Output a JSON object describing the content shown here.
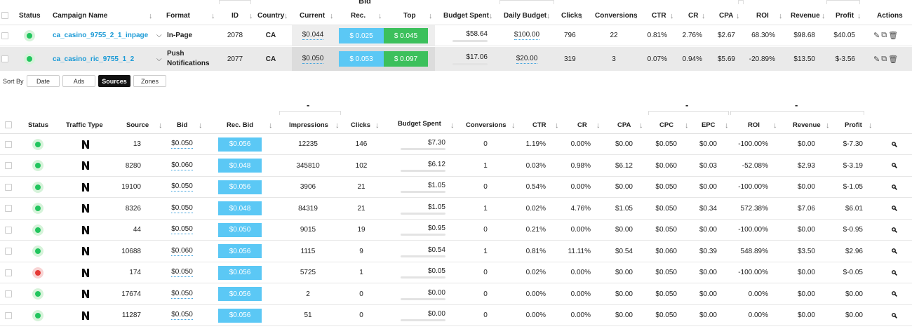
{
  "campaigns": {
    "bid_group_title": "Bid",
    "headers": {
      "status": "Status",
      "campaign_name": "Campaign Name",
      "format": "Format",
      "id": "ID",
      "country": "Country",
      "current": "Current",
      "rec": "Rec.",
      "top": "Top",
      "budget_spent": "Budget Spent",
      "daily_budget": "Daily Budget",
      "clicks": "Clicks",
      "conversions": "Conversions",
      "ctr": "CTR",
      "cr": "CR",
      "cpa": "CPA",
      "roi": "ROI",
      "revenue": "Revenue",
      "profit": "Profit",
      "actions": "Actions"
    },
    "sort_arrow": "↓",
    "rows": [
      {
        "status": "active",
        "name": "ca_casino_9755_2_1_inpage",
        "format": "In-Page",
        "id": "2078",
        "country": "CA",
        "current": "$0.044",
        "rec": "$ 0.025",
        "top": "$ 0.045",
        "budget_spent": "$58.64",
        "daily_budget": "$100.00",
        "clicks": "796",
        "conversions": "22",
        "ctr": "0.81%",
        "cr": "2.76%",
        "cpa": "$2.67",
        "roi": "68.30%",
        "revenue": "$98.68",
        "profit": "$40.05"
      },
      {
        "status": "active",
        "name": "ca_casino_ric_9755_1_2",
        "format_line1": "Push",
        "format_line2": "Notifications",
        "id": "2077",
        "country": "CA",
        "current": "$0.050",
        "rec": "$ 0.053",
        "top": "$ 0.097",
        "budget_spent": "$17.06",
        "daily_budget": "$20.00",
        "clicks": "319",
        "conversions": "3",
        "ctr": "0.07%",
        "cr": "0.94%",
        "cpa": "$5.69",
        "roi": "-20.89%",
        "revenue": "$13.50",
        "profit": "$-3.56"
      }
    ]
  },
  "sort_by": {
    "label": "Sort By",
    "options": [
      "Date",
      "Ads",
      "Sources",
      "Zones"
    ],
    "active": "Sources"
  },
  "sources": {
    "group_dashes": [
      "-",
      "-",
      "-"
    ],
    "headers": {
      "status": "Status",
      "traffic_type": "Traffic Type",
      "source": "Source",
      "bid": "Bid",
      "rec_bid": "Rec. Bid",
      "impressions": "Impressions",
      "clicks": "Clicks",
      "budget_spent": "Budget Spent",
      "conversions": "Conversions",
      "ctr": "CTR",
      "cr": "CR",
      "cpa": "CPA",
      "cpc": "CPC",
      "epc": "EPC",
      "roi": "ROI",
      "revenue": "Revenue",
      "profit": "Profit"
    },
    "rows": [
      {
        "status": "active",
        "source": "13",
        "bid": "$0.050",
        "rec_bid": "$0.056",
        "impressions": "12235",
        "clicks": "146",
        "budget_spent": "$7.30",
        "conversions": "0",
        "ctr": "1.19%",
        "cr": "0.00%",
        "cpa": "$0.00",
        "cpc": "$0.050",
        "epc": "$0.00",
        "roi": "-100.00%",
        "revenue": "$0.00",
        "profit": "$-7.30"
      },
      {
        "status": "active",
        "source": "8280",
        "bid": "$0.060",
        "rec_bid": "$0.048",
        "impressions": "345810",
        "clicks": "102",
        "budget_spent": "$6.12",
        "conversions": "1",
        "ctr": "0.03%",
        "cr": "0.98%",
        "cpa": "$6.12",
        "cpc": "$0.060",
        "epc": "$0.03",
        "roi": "-52.08%",
        "revenue": "$2.93",
        "profit": "$-3.19"
      },
      {
        "status": "active",
        "source": "19100",
        "bid": "$0.050",
        "rec_bid": "$0.056",
        "impressions": "3906",
        "clicks": "21",
        "budget_spent": "$1.05",
        "conversions": "0",
        "ctr": "0.54%",
        "cr": "0.00%",
        "cpa": "$0.00",
        "cpc": "$0.050",
        "epc": "$0.00",
        "roi": "-100.00%",
        "revenue": "$0.00",
        "profit": "$-1.05"
      },
      {
        "status": "active",
        "source": "8326",
        "bid": "$0.050",
        "rec_bid": "$0.048",
        "impressions": "84319",
        "clicks": "21",
        "budget_spent": "$1.05",
        "conversions": "1",
        "ctr": "0.02%",
        "cr": "4.76%",
        "cpa": "$1.05",
        "cpc": "$0.050",
        "epc": "$0.34",
        "roi": "572.38%",
        "revenue": "$7.06",
        "profit": "$6.01"
      },
      {
        "status": "active",
        "source": "44",
        "bid": "$0.050",
        "rec_bid": "$0.050",
        "impressions": "9015",
        "clicks": "19",
        "budget_spent": "$0.95",
        "conversions": "0",
        "ctr": "0.21%",
        "cr": "0.00%",
        "cpa": "$0.00",
        "cpc": "$0.050",
        "epc": "$0.00",
        "roi": "-100.00%",
        "revenue": "$0.00",
        "profit": "$-0.95"
      },
      {
        "status": "active",
        "source": "10688",
        "bid": "$0.060",
        "rec_bid": "$0.056",
        "impressions": "1115",
        "clicks": "9",
        "budget_spent": "$0.54",
        "conversions": "1",
        "ctr": "0.81%",
        "cr": "11.11%",
        "cpa": "$0.54",
        "cpc": "$0.060",
        "epc": "$0.39",
        "roi": "548.89%",
        "revenue": "$3.50",
        "profit": "$2.96"
      },
      {
        "status": "paused",
        "source": "174",
        "bid": "$0.050",
        "rec_bid": "$0.056",
        "impressions": "5725",
        "clicks": "1",
        "budget_spent": "$0.05",
        "conversions": "0",
        "ctr": "0.02%",
        "cr": "0.00%",
        "cpa": "$0.00",
        "cpc": "$0.050",
        "epc": "$0.00",
        "roi": "-100.00%",
        "revenue": "$0.00",
        "profit": "$-0.05"
      },
      {
        "status": "active",
        "source": "17674",
        "bid": "$0.050",
        "rec_bid": "$0.056",
        "impressions": "2",
        "clicks": "0",
        "budget_spent": "$0.00",
        "conversions": "0",
        "ctr": "0.00%",
        "cr": "0.00%",
        "cpa": "$0.00",
        "cpc": "$0.050",
        "epc": "$0.00",
        "roi": "0.00%",
        "revenue": "$0.00",
        "profit": "$0.00"
      },
      {
        "status": "active",
        "source": "11287",
        "bid": "$0.050",
        "rec_bid": "$0.056",
        "impressions": "51",
        "clicks": "0",
        "budget_spent": "$0.00",
        "conversions": "0",
        "ctr": "0.00%",
        "cr": "0.00%",
        "cpa": "$0.00",
        "cpc": "$0.050",
        "epc": "$0.00",
        "roi": "0.00%",
        "revenue": "$0.00",
        "profit": "$0.00"
      }
    ]
  },
  "colors": {
    "link": "#1a9ad6",
    "rec_blue": "#5bc8f5",
    "top_green": "#3cc05c",
    "status_active": "#22c55e",
    "status_paused": "#e53935"
  },
  "icons": {
    "traffic_type": "n-logo-icon",
    "row_action": "search-icon",
    "campaign_actions": [
      "edit-icon",
      "copy-icon",
      "delete-icon"
    ],
    "expand": "chevron-down-icon"
  }
}
